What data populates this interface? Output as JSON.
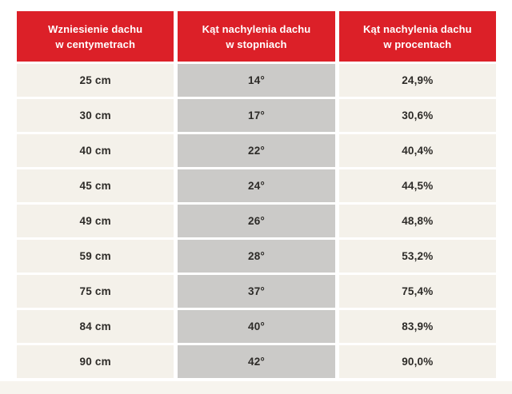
{
  "table": {
    "headers": [
      {
        "line1": "Wzniesienie dachu",
        "line2": "w centymetrach"
      },
      {
        "line1": "Kąt nachylenia dachu",
        "line2": "w stopniach"
      },
      {
        "line1": "Kąt nachylenia dachu",
        "line2": "w procentach"
      }
    ],
    "rows": [
      {
        "cm": "25 cm",
        "deg": "14°",
        "pct": "24,9%"
      },
      {
        "cm": "30 cm",
        "deg": "17°",
        "pct": "30,6%"
      },
      {
        "cm": "40 cm",
        "deg": "22°",
        "pct": "40,4%"
      },
      {
        "cm": "45 cm",
        "deg": "24°",
        "pct": "44,5%"
      },
      {
        "cm": "49 cm",
        "deg": "26°",
        "pct": "48,8%"
      },
      {
        "cm": "59 cm",
        "deg": "28°",
        "pct": "53,2%"
      },
      {
        "cm": "75 cm",
        "deg": "37°",
        "pct": "75,4%"
      },
      {
        "cm": "84 cm",
        "deg": "40°",
        "pct": "83,9%"
      },
      {
        "cm": "90 cm",
        "deg": "42°",
        "pct": "90,0%"
      }
    ]
  },
  "colors": {
    "header_red": "#dc2028",
    "cell_cream": "#f4f1ea",
    "cell_gray": "#cbcac8",
    "text_dark": "#2d2b28",
    "page_background": "#ffffff",
    "bottom_band": "#f7f4ee"
  },
  "chart_data": {
    "type": "table",
    "columns": [
      "Wzniesienie dachu w centymetrach",
      "Kąt nachylenia dachu w stopniach",
      "Kąt nachylenia dachu w procentach"
    ],
    "rows": [
      [
        "25 cm",
        "14°",
        "24,9%"
      ],
      [
        "30 cm",
        "17°",
        "30,6%"
      ],
      [
        "40 cm",
        "22°",
        "40,4%"
      ],
      [
        "45 cm",
        "24°",
        "44,5%"
      ],
      [
        "49 cm",
        "26°",
        "48,8%"
      ],
      [
        "59 cm",
        "28°",
        "53,2%"
      ],
      [
        "75 cm",
        "37°",
        "75,4%"
      ],
      [
        "84 cm",
        "40°",
        "83,9%"
      ],
      [
        "90 cm",
        "42°",
        "90,0%"
      ]
    ]
  }
}
